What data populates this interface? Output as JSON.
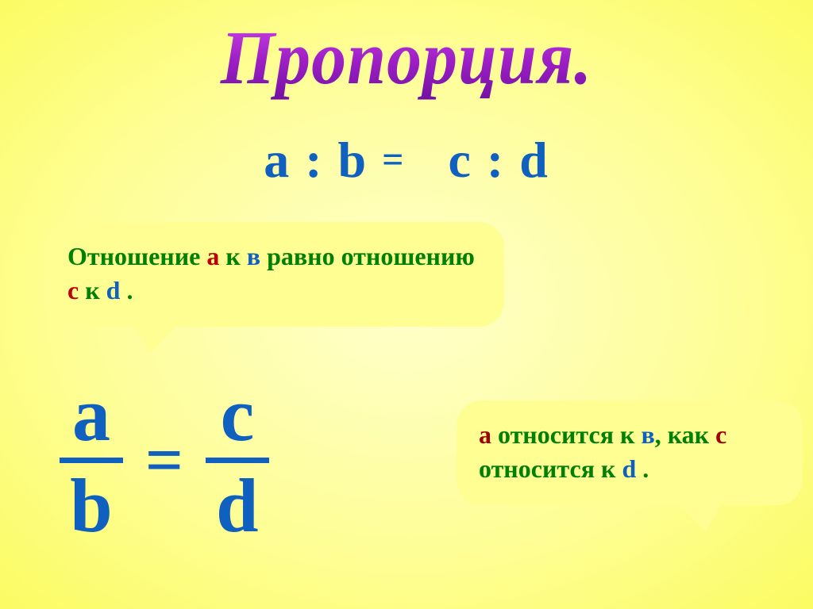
{
  "colors": {
    "green": "#008000",
    "red": "#c00000",
    "blue": "#1060c0",
    "darkred": "#a00000",
    "callout_bg": "#fefe92",
    "bg_center": "#ffffcc",
    "bg_edge": "#fbfb62"
  },
  "title": "Пропорция.",
  "ratio": {
    "a": "a",
    "b": "b",
    "c": "c",
    "d": "d",
    "colon": ":",
    "eq": "="
  },
  "sentence1": {
    "p1": "Отношение ",
    "a": "а",
    "p2": " к ",
    "b": "в",
    "p3": " равно отношению ",
    "c": "с",
    "p4": " к ",
    "d": "d",
    "p5": " ."
  },
  "sentence2": {
    "a": "а",
    "p1": " относится к ",
    "b": "в",
    "p2": ", как ",
    "c": "с",
    "p3": " относится к ",
    "d": "d",
    "p4": " ."
  },
  "fraction": {
    "a": "a",
    "b": "b",
    "c": "c",
    "d": "d",
    "eq": "="
  },
  "typography": {
    "title_fontsize": 88,
    "ratio_fontsize": 64,
    "sentence_fontsize": 32,
    "fraction_fontsize": 96,
    "font_family": "Times New Roman"
  }
}
